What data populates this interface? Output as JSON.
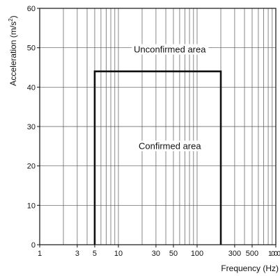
{
  "chart_data": {
    "type": "line",
    "x_scale": "log",
    "xlabel": "Frequency (Hz)",
    "ylabel_main": "Acceleration (m/s",
    "ylabel_sup": "2",
    "ylabel_close": ")",
    "xlim": [
      1,
      1000
    ],
    "ylim": [
      0,
      60
    ],
    "x_ticks": [
      1,
      3,
      5,
      10,
      30,
      50,
      100,
      300,
      500,
      1000
    ],
    "x_tick_labels": [
      "1",
      "3",
      "5",
      "10",
      "30",
      "50",
      "100",
      "300",
      "500",
      "1000"
    ],
    "y_ticks": [
      0,
      10,
      20,
      30,
      40,
      50,
      60
    ],
    "y_tick_labels": [
      "0",
      "10",
      "20",
      "30",
      "40",
      "50",
      "60"
    ],
    "grid": true,
    "series": [
      {
        "x": [
          5,
          5,
          200,
          200
        ],
        "y": [
          0,
          44,
          44,
          0
        ],
        "color": "#111111"
      }
    ],
    "annotations": [
      {
        "text": "Unconfirmed area",
        "x": 45,
        "y": 49.5
      },
      {
        "text": "Confirmed area",
        "x": 45,
        "y": 25
      }
    ]
  }
}
